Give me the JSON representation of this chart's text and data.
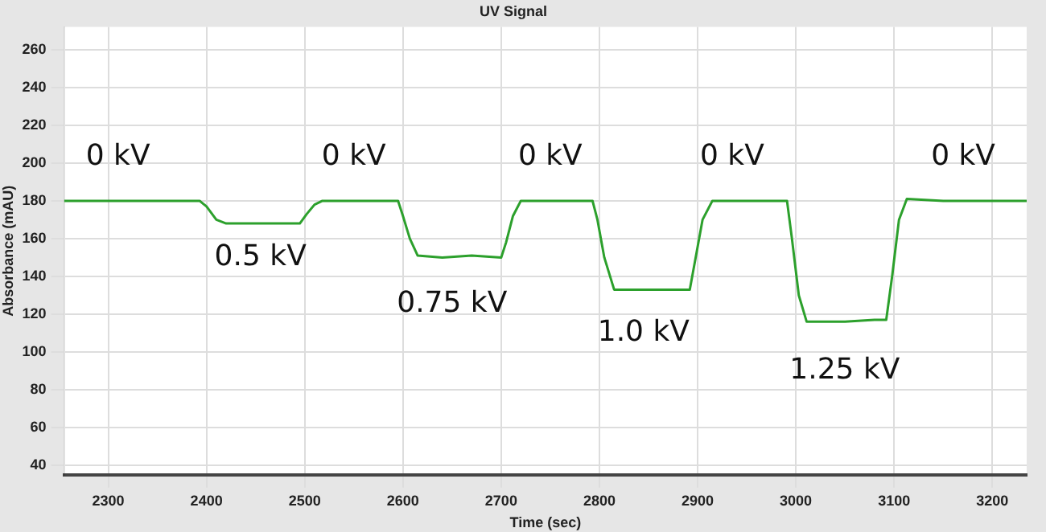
{
  "chart_data": {
    "type": "line",
    "title": "UV Signal",
    "xlabel": "Time (sec)",
    "ylabel": "Absorbance (mAU)",
    "xlim": [
      2255,
      3235
    ],
    "xticks": [
      2300,
      2400,
      2500,
      2600,
      2700,
      2800,
      2900,
      3000,
      3100,
      3200
    ],
    "ylim": [
      35,
      272
    ],
    "yticks": [
      40,
      60,
      80,
      100,
      120,
      140,
      160,
      180,
      200,
      220,
      240,
      260
    ],
    "grid": true,
    "legend": false,
    "marker": "none",
    "line_style": "solid",
    "series": [
      {
        "color": "#2ca02c",
        "x": [
          2255,
          2393,
          2400,
          2410,
          2420,
          2450,
          2480,
          2495,
          2502,
          2510,
          2518,
          2550,
          2595,
          2600,
          2607,
          2615,
          2640,
          2670,
          2700,
          2705,
          2712,
          2720,
          2760,
          2793,
          2798,
          2805,
          2815,
          2850,
          2892,
          2898,
          2905,
          2915,
          2950,
          2991,
          2996,
          3003,
          3011,
          3050,
          3080,
          3092,
          3098,
          3105,
          3113,
          3150,
          3235
        ],
        "values": [
          180,
          180,
          177,
          170,
          168,
          168,
          168,
          168,
          173,
          178,
          180,
          180,
          180,
          172,
          160,
          151,
          150,
          151,
          150,
          158,
          172,
          180,
          180,
          180,
          170,
          150,
          133,
          133,
          133,
          150,
          170,
          180,
          180,
          180,
          160,
          130,
          116,
          116,
          117,
          117,
          140,
          170,
          181,
          180,
          180
        ]
      }
    ],
    "annotations": [
      "0 kV",
      "0.5 kV",
      "0 kV",
      "0.75 kV",
      "0 kV",
      "1.0 kV",
      "0 kV",
      "1.25 kV",
      "0 kV"
    ]
  }
}
